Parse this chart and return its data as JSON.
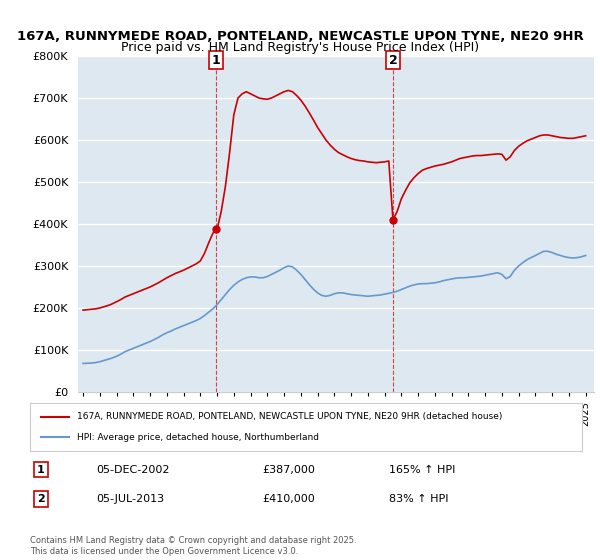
{
  "title1": "167A, RUNNYMEDE ROAD, PONTELAND, NEWCASTLE UPON TYNE, NE20 9HR",
  "title2": "Price paid vs. HM Land Registry's House Price Index (HPI)",
  "ylabel_ticks": [
    "£0",
    "£100K",
    "£200K",
    "£300K",
    "£400K",
    "£500K",
    "£600K",
    "£700K",
    "£800K"
  ],
  "ylim": [
    0,
    800000
  ],
  "xlim_start": 1995,
  "xlim_end": 2025.5,
  "red_color": "#cc0000",
  "blue_color": "#6699cc",
  "bg_color": "#dde8f0",
  "grid_color": "#ffffff",
  "marker1_x": 2002.92,
  "marker1_y": 387000,
  "marker1_label": "1",
  "marker2_x": 2013.5,
  "marker2_y": 410000,
  "marker2_label": "2",
  "legend_red_label": "167A, RUNNYMEDE ROAD, PONTELAND, NEWCASTLE UPON TYNE, NE20 9HR (detached house)",
  "legend_blue_label": "HPI: Average price, detached house, Northumberland",
  "annotation1_date": "05-DEC-2002",
  "annotation1_price": "£387,000",
  "annotation1_hpi": "165% ↑ HPI",
  "annotation2_date": "05-JUL-2013",
  "annotation2_price": "£410,000",
  "annotation2_hpi": "83% ↑ HPI",
  "footer": "Contains HM Land Registry data © Crown copyright and database right 2025.\nThis data is licensed under the Open Government Licence v3.0.",
  "hpi_data_x": [
    1995.0,
    1995.25,
    1995.5,
    1995.75,
    1996.0,
    1996.25,
    1996.5,
    1996.75,
    1997.0,
    1997.25,
    1997.5,
    1997.75,
    1998.0,
    1998.25,
    1998.5,
    1998.75,
    1999.0,
    1999.25,
    1999.5,
    1999.75,
    2000.0,
    2000.25,
    2000.5,
    2000.75,
    2001.0,
    2001.25,
    2001.5,
    2001.75,
    2002.0,
    2002.25,
    2002.5,
    2002.75,
    2003.0,
    2003.25,
    2003.5,
    2003.75,
    2004.0,
    2004.25,
    2004.5,
    2004.75,
    2005.0,
    2005.25,
    2005.5,
    2005.75,
    2006.0,
    2006.25,
    2006.5,
    2006.75,
    2007.0,
    2007.25,
    2007.5,
    2007.75,
    2008.0,
    2008.25,
    2008.5,
    2008.75,
    2009.0,
    2009.25,
    2009.5,
    2009.75,
    2010.0,
    2010.25,
    2010.5,
    2010.75,
    2011.0,
    2011.25,
    2011.5,
    2011.75,
    2012.0,
    2012.25,
    2012.5,
    2012.75,
    2013.0,
    2013.25,
    2013.5,
    2013.75,
    2014.0,
    2014.25,
    2014.5,
    2014.75,
    2015.0,
    2015.25,
    2015.5,
    2015.75,
    2016.0,
    2016.25,
    2016.5,
    2016.75,
    2017.0,
    2017.25,
    2017.5,
    2017.75,
    2018.0,
    2018.25,
    2018.5,
    2018.75,
    2019.0,
    2019.25,
    2019.5,
    2019.75,
    2020.0,
    2020.25,
    2020.5,
    2020.75,
    2021.0,
    2021.25,
    2021.5,
    2021.75,
    2022.0,
    2022.25,
    2022.5,
    2022.75,
    2023.0,
    2023.25,
    2023.5,
    2023.75,
    2024.0,
    2024.25,
    2024.5,
    2024.75,
    2025.0
  ],
  "hpi_data_y": [
    68000,
    68500,
    69000,
    70000,
    72000,
    75000,
    78000,
    81000,
    85000,
    90000,
    96000,
    100000,
    104000,
    108000,
    112000,
    116000,
    120000,
    125000,
    130000,
    136000,
    141000,
    145000,
    150000,
    154000,
    158000,
    162000,
    166000,
    170000,
    175000,
    182000,
    190000,
    198000,
    208000,
    220000,
    232000,
    244000,
    254000,
    262000,
    268000,
    272000,
    274000,
    274000,
    272000,
    272000,
    275000,
    280000,
    285000,
    290000,
    296000,
    300000,
    298000,
    290000,
    280000,
    268000,
    256000,
    245000,
    236000,
    230000,
    228000,
    230000,
    234000,
    236000,
    236000,
    234000,
    232000,
    231000,
    230000,
    229000,
    228000,
    229000,
    230000,
    231000,
    233000,
    235000,
    237000,
    240000,
    244000,
    248000,
    252000,
    255000,
    257000,
    258000,
    258000,
    259000,
    260000,
    262000,
    265000,
    267000,
    269000,
    271000,
    272000,
    272000,
    273000,
    274000,
    275000,
    276000,
    278000,
    280000,
    282000,
    284000,
    280000,
    270000,
    275000,
    290000,
    300000,
    308000,
    315000,
    320000,
    325000,
    330000,
    335000,
    335000,
    332000,
    328000,
    325000,
    322000,
    320000,
    319000,
    320000,
    322000,
    325000
  ],
  "red_data_x": [
    1995.0,
    1995.25,
    1995.5,
    1995.75,
    1996.0,
    1996.25,
    1996.5,
    1996.75,
    1997.0,
    1997.25,
    1997.5,
    1997.75,
    1998.0,
    1998.25,
    1998.5,
    1998.75,
    1999.0,
    1999.25,
    1999.5,
    1999.75,
    2000.0,
    2000.25,
    2000.5,
    2000.75,
    2001.0,
    2001.25,
    2001.5,
    2001.75,
    2002.0,
    2002.25,
    2002.5,
    2002.75,
    2003.0,
    2003.25,
    2003.5,
    2003.75,
    2004.0,
    2004.25,
    2004.5,
    2004.75,
    2005.0,
    2005.25,
    2005.5,
    2005.75,
    2006.0,
    2006.25,
    2006.5,
    2006.75,
    2007.0,
    2007.25,
    2007.5,
    2007.75,
    2008.0,
    2008.25,
    2008.5,
    2008.75,
    2009.0,
    2009.25,
    2009.5,
    2009.75,
    2010.0,
    2010.25,
    2010.5,
    2010.75,
    2011.0,
    2011.25,
    2011.5,
    2011.75,
    2012.0,
    2012.25,
    2012.5,
    2012.75,
    2013.0,
    2013.25,
    2013.5,
    2013.75,
    2014.0,
    2014.25,
    2014.5,
    2014.75,
    2015.0,
    2015.25,
    2015.5,
    2015.75,
    2016.0,
    2016.25,
    2016.5,
    2016.75,
    2017.0,
    2017.25,
    2017.5,
    2017.75,
    2018.0,
    2018.25,
    2018.5,
    2018.75,
    2019.0,
    2019.25,
    2019.5,
    2019.75,
    2020.0,
    2020.25,
    2020.5,
    2020.75,
    2021.0,
    2021.25,
    2021.5,
    2021.75,
    2022.0,
    2022.25,
    2022.5,
    2022.75,
    2023.0,
    2023.25,
    2023.5,
    2023.75,
    2024.0,
    2024.25,
    2024.5,
    2024.75,
    2025.0
  ],
  "red_data_y": [
    195000,
    196000,
    197000,
    198000,
    200000,
    203000,
    206000,
    210000,
    215000,
    220000,
    226000,
    230000,
    234000,
    238000,
    242000,
    246000,
    250000,
    255000,
    260000,
    266000,
    272000,
    277000,
    282000,
    286000,
    290000,
    295000,
    300000,
    305000,
    312000,
    330000,
    355000,
    378000,
    387000,
    430000,
    490000,
    570000,
    660000,
    700000,
    710000,
    715000,
    710000,
    705000,
    700000,
    698000,
    697000,
    700000,
    705000,
    710000,
    715000,
    718000,
    715000,
    706000,
    695000,
    681000,
    665000,
    648000,
    630000,
    615000,
    600000,
    588000,
    578000,
    570000,
    565000,
    560000,
    556000,
    553000,
    551000,
    550000,
    548000,
    547000,
    546000,
    547000,
    548000,
    550000,
    410000,
    430000,
    460000,
    480000,
    498000,
    510000,
    520000,
    528000,
    532000,
    535000,
    538000,
    540000,
    542000,
    545000,
    548000,
    552000,
    556000,
    558000,
    560000,
    562000,
    563000,
    563000,
    564000,
    565000,
    566000,
    567000,
    566000,
    552000,
    560000,
    575000,
    585000,
    592000,
    598000,
    602000,
    606000,
    610000,
    612000,
    612000,
    610000,
    608000,
    606000,
    605000,
    604000,
    604000,
    606000,
    608000,
    610000
  ]
}
